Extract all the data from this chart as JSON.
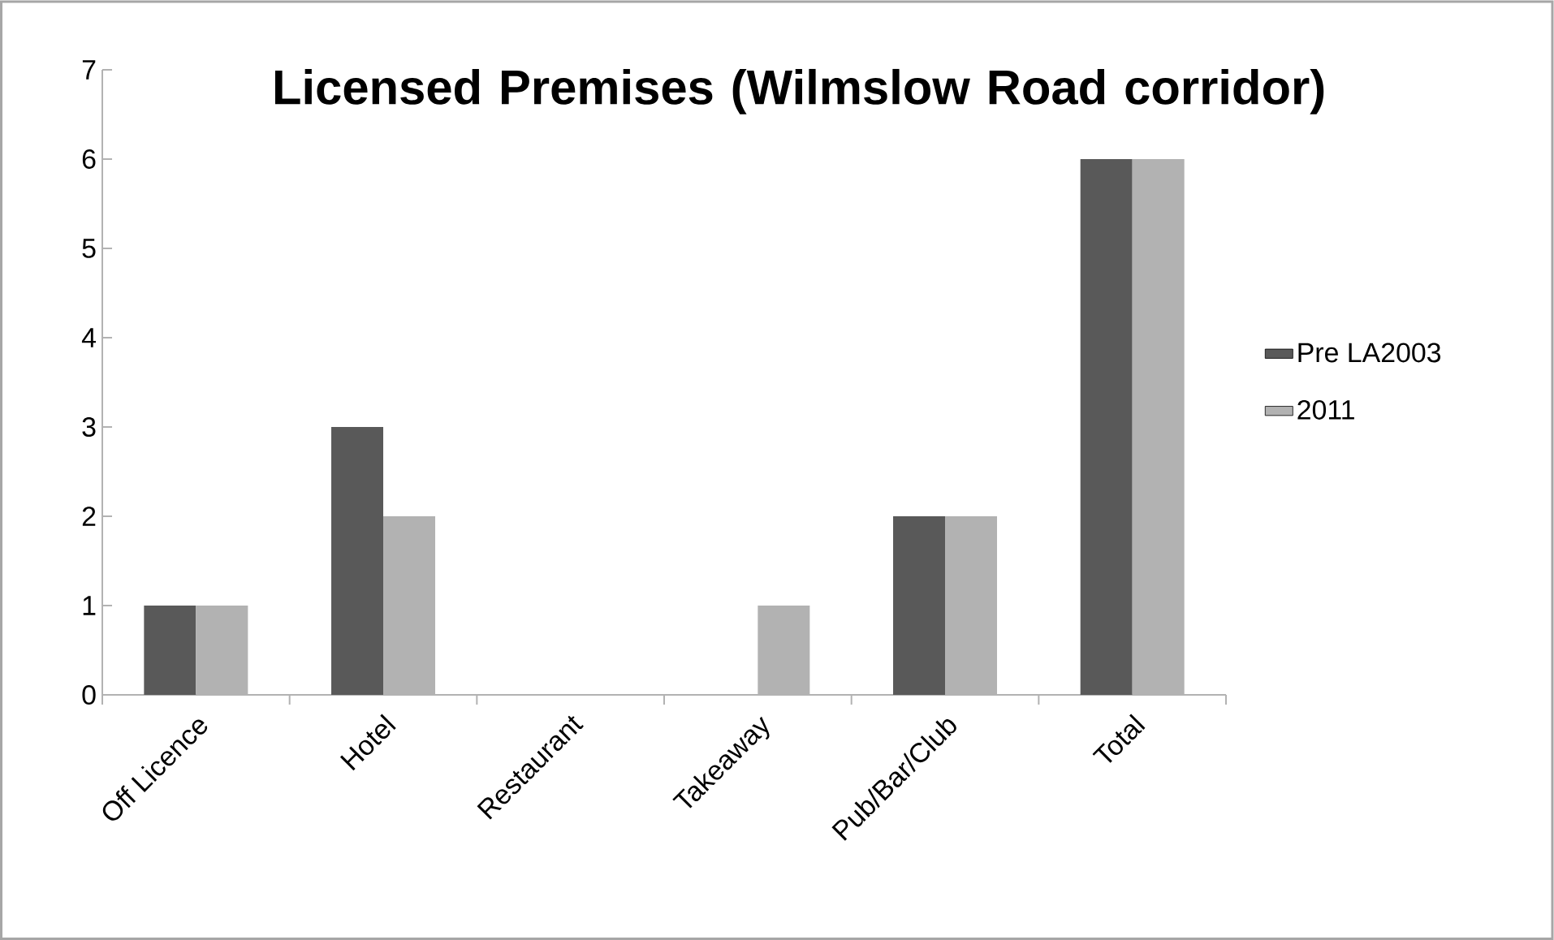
{
  "chart_data": {
    "type": "bar",
    "title": "Licensed Premises (Wilmslow Road corridor)",
    "categories": [
      "Off Licence",
      "Hotel",
      "Restaurant",
      "Takeaway",
      "Pub/Bar/Club",
      "Total"
    ],
    "series": [
      {
        "name": "Pre LA2003",
        "color": "#595959",
        "values": [
          1,
          3,
          0,
          0,
          2,
          6
        ]
      },
      {
        "name": "2011",
        "color": "#b2b2b2",
        "values": [
          1,
          2,
          0,
          1,
          2,
          6
        ]
      }
    ],
    "ylim": [
      0,
      7
    ],
    "yticks": [
      0,
      1,
      2,
      3,
      4,
      5,
      6,
      7
    ],
    "grid": false,
    "legend": "right"
  }
}
